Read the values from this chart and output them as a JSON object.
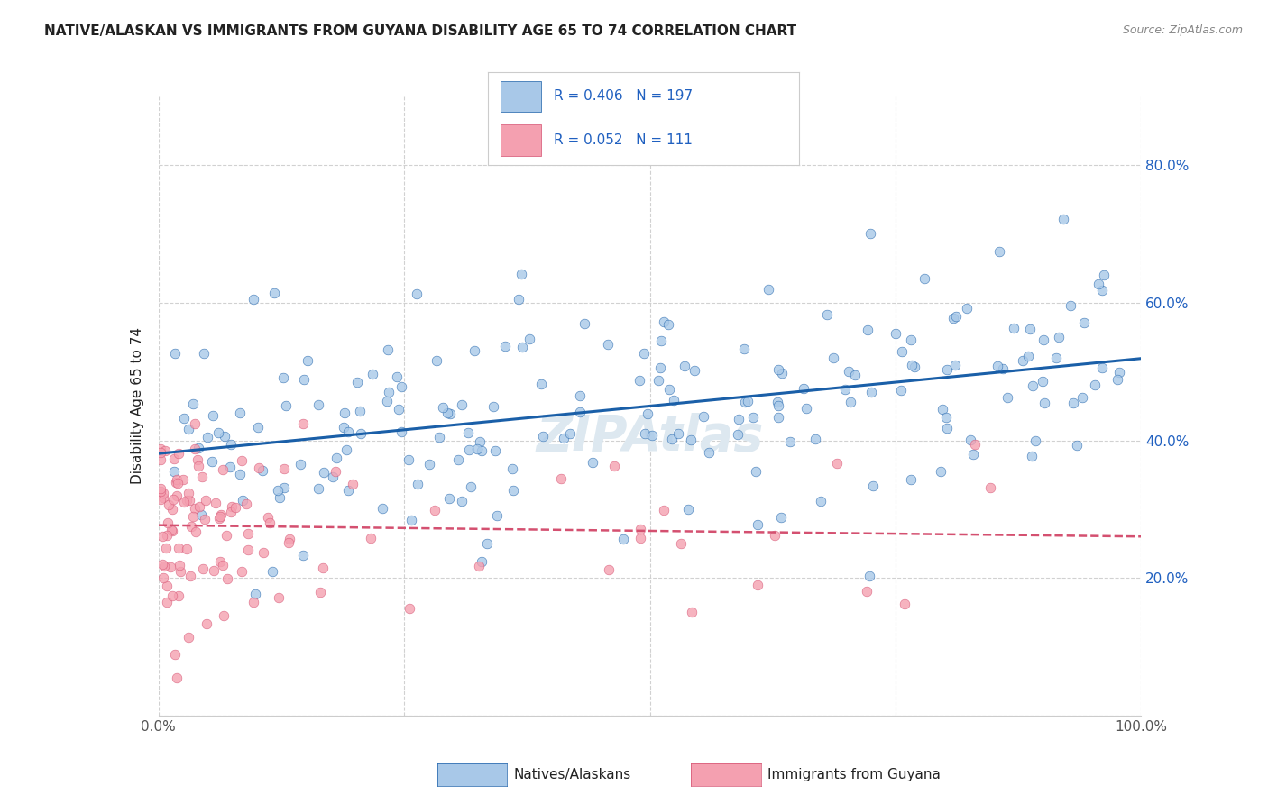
{
  "title": "NATIVE/ALASKAN VS IMMIGRANTS FROM GUYANA DISABILITY AGE 65 TO 74 CORRELATION CHART",
  "source": "Source: ZipAtlas.com",
  "ylabel": "Disability Age 65 to 74",
  "xlim": [
    0.0,
    1.0
  ],
  "ylim": [
    0.0,
    0.9
  ],
  "blue_R": 0.406,
  "blue_N": 197,
  "pink_R": 0.052,
  "pink_N": 111,
  "blue_color": "#a8c8e8",
  "pink_color": "#f4a0b0",
  "blue_line_color": "#1a5fa8",
  "pink_line_color": "#d45070",
  "right_ytick_color": "#2060c0",
  "grid_color": "#cccccc",
  "title_color": "#222222",
  "source_color": "#888888",
  "watermark_color": "#dde8f0",
  "legend_border_color": "#cccccc",
  "bottom_tick_color": "#555555"
}
